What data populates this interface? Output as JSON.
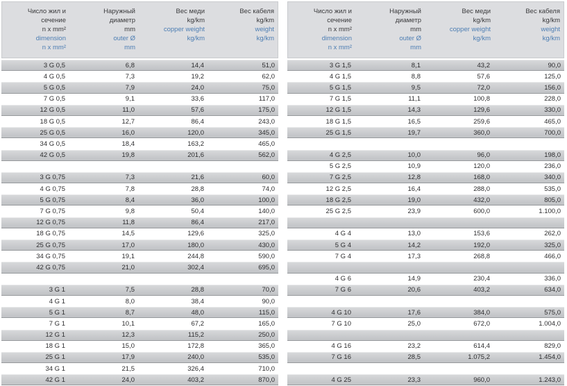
{
  "colors": {
    "accent_blue": "#4d7eb3",
    "header_bg": "#dcdde0",
    "stripe_gray": "#c6c8cb",
    "text_dark": "#2d2d2f"
  },
  "header_columns": [
    {
      "name": "dimension",
      "black": [
        "Число жил и",
        "сечение",
        "n x mm²"
      ],
      "blue": [
        "dimension",
        "n x mm²"
      ]
    },
    {
      "name": "outer-diameter",
      "black": [
        "Наружный",
        "диаметр",
        "mm"
      ],
      "blue": [
        "outer Ø",
        "mm"
      ]
    },
    {
      "name": "copper-weight",
      "black": [
        "Вес меди",
        "kg/km"
      ],
      "blue": [
        "copper weight",
        "kg/km"
      ]
    },
    {
      "name": "cable-weight",
      "black": [
        "Вес кабеля",
        "kg/km"
      ],
      "blue": [
        "weight",
        "kg/km"
      ]
    }
  ],
  "left_table": {
    "rows": [
      [
        "3 G 0,5",
        "6,8",
        "14,4",
        "51,0"
      ],
      [
        "4 G 0,5",
        "7,3",
        "19,2",
        "62,0"
      ],
      [
        "5 G 0,5",
        "7,9",
        "24,0",
        "75,0"
      ],
      [
        "7 G 0,5",
        "9,1",
        "33,6",
        "117,0"
      ],
      [
        "12 G 0,5",
        "11,0",
        "57,6",
        "175,0"
      ],
      [
        "18 G 0,5",
        "12,7",
        "86,4",
        "243,0"
      ],
      [
        "25 G 0,5",
        "16,0",
        "120,0",
        "345,0"
      ],
      [
        "34 G 0,5",
        "18,4",
        "163,2",
        "465,0"
      ],
      [
        "42 G 0,5",
        "19,8",
        "201,6",
        "562,0"
      ],
      null,
      [
        "3 G 0,75",
        "7,3",
        "21,6",
        "60,0"
      ],
      [
        "4 G 0,75",
        "7,8",
        "28,8",
        "74,0"
      ],
      [
        "5 G 0,75",
        "8,4",
        "36,0",
        "100,0"
      ],
      [
        "7 G 0,75",
        "9,8",
        "50,4",
        "140,0"
      ],
      [
        "12 G 0,75",
        "11,8",
        "86,4",
        "217,0"
      ],
      [
        "18 G 0,75",
        "14,5",
        "129,6",
        "325,0"
      ],
      [
        "25 G 0,75",
        "17,0",
        "180,0",
        "430,0"
      ],
      [
        "34 G 0,75",
        "19,1",
        "244,8",
        "590,0"
      ],
      [
        "42 G 0,75",
        "21,0",
        "302,4",
        "695,0"
      ],
      null,
      [
        "3 G 1",
        "7,5",
        "28,8",
        "70,0"
      ],
      [
        "4 G 1",
        "8,0",
        "38,4",
        "90,0"
      ],
      [
        "5 G 1",
        "8,7",
        "48,0",
        "115,0"
      ],
      [
        "7 G 1",
        "10,1",
        "67,2",
        "165,0"
      ],
      [
        "12 G 1",
        "12,3",
        "115,2",
        "250,0"
      ],
      [
        "18 G 1",
        "15,0",
        "172,8",
        "365,0"
      ],
      [
        "25 G 1",
        "17,9",
        "240,0",
        "535,0"
      ],
      [
        "34 G 1",
        "21,5",
        "326,4",
        "710,0"
      ],
      [
        "42 G 1",
        "24,0",
        "403,2",
        "870,0"
      ]
    ]
  },
  "right_table": {
    "rows": [
      [
        "3 G 1,5",
        "8,1",
        "43,2",
        "90,0"
      ],
      [
        "4 G 1,5",
        "8,8",
        "57,6",
        "125,0"
      ],
      [
        "5 G 1,5",
        "9,5",
        "72,0",
        "156,0"
      ],
      [
        "7 G 1,5",
        "11,1",
        "100,8",
        "228,0"
      ],
      [
        "12 G 1,5",
        "14,3",
        "129,6",
        "330,0"
      ],
      [
        "18 G 1,5",
        "16,5",
        "259,6",
        "465,0"
      ],
      [
        "25 G 1,5",
        "19,7",
        "360,0",
        "700,0"
      ],
      null,
      [
        "4 G 2,5",
        "10,0",
        "96,0",
        "198,0"
      ],
      [
        "5 G 2,5",
        "10,9",
        "120,0",
        "236,0"
      ],
      [
        "7 G 2,5",
        "12,8",
        "168,0",
        "340,0"
      ],
      [
        "12 G 2,5",
        "16,4",
        "288,0",
        "535,0"
      ],
      [
        "18 G 2,5",
        "19,0",
        "432,0",
        "805,0"
      ],
      [
        "25 G 2,5",
        "23,9",
        "600,0",
        "1.100,0"
      ],
      null,
      [
        "4 G 4",
        "13,0",
        "153,6",
        "262,0"
      ],
      [
        "5 G 4",
        "14,2",
        "192,0",
        "325,0"
      ],
      [
        "7 G 4",
        "17,3",
        "268,8",
        "466,0"
      ],
      null,
      [
        "4 G 6",
        "14,9",
        "230,4",
        "336,0"
      ],
      [
        "7 G 6",
        "20,6",
        "403,2",
        "634,0"
      ],
      null,
      [
        "4 G 10",
        "17,6",
        "384,0",
        "575,0"
      ],
      [
        "7 G 10",
        "25,0",
        "672,0",
        "1.004,0"
      ],
      null,
      [
        "4 G 16",
        "23,2",
        "614,4",
        "829,0"
      ],
      [
        "7 G 16",
        "28,5",
        "1.075,2",
        "1.454,0"
      ],
      null,
      [
        "4 G 25",
        "23,3",
        "960,0",
        "1.243,0"
      ]
    ]
  }
}
